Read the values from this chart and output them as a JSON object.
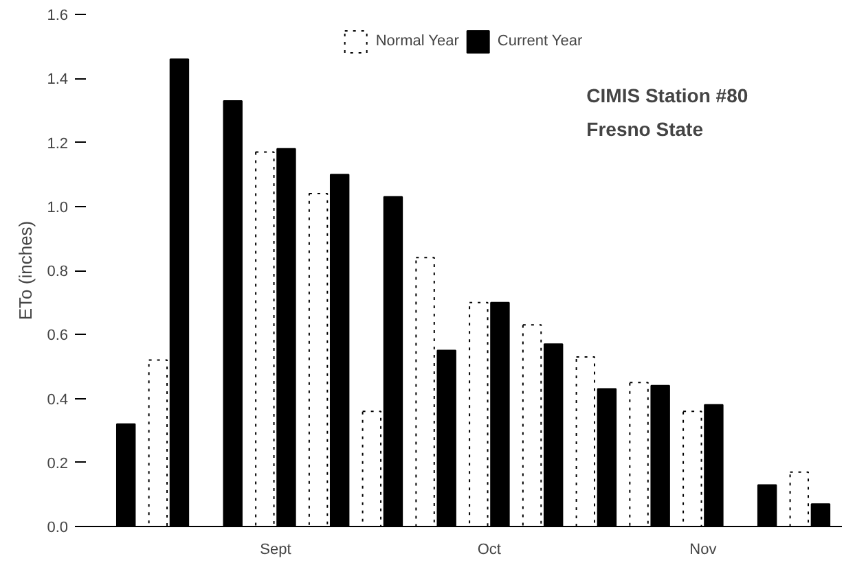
{
  "chart_data": {
    "type": "bar",
    "ylabel": "ETo (inches)",
    "categories": [
      null,
      null,
      null,
      "Sept",
      null,
      null,
      null,
      "Oct",
      null,
      null,
      null,
      "Nov",
      null,
      null
    ],
    "series": [
      {
        "name": "Normal Year",
        "color": "#ffffff",
        "values": [
          null,
          0.52,
          null,
          1.17,
          1.04,
          0.36,
          0.84,
          0.7,
          0.63,
          0.53,
          0.45,
          0.36,
          null,
          0.17
        ]
      },
      {
        "name": "Current Year",
        "color": "#000000",
        "values": [
          0.32,
          1.46,
          1.33,
          1.18,
          1.1,
          1.03,
          0.55,
          0.7,
          0.57,
          0.43,
          0.44,
          0.38,
          0.13,
          0.07
        ]
      }
    ],
    "ylim": [
      0,
      1.6
    ],
    "yticks": [
      {
        "value": 0,
        "label": "0.0"
      },
      {
        "value": 0.2,
        "label": "0.2"
      },
      {
        "value": 0.4,
        "label": "0.4"
      },
      {
        "value": 0.6,
        "label": "0.6"
      },
      {
        "value": 0.8,
        "label": "0.8"
      },
      {
        "value": 1,
        "label": "1.0"
      },
      {
        "value": 1.2,
        "label": "1.2"
      },
      {
        "value": 1.4,
        "label": "1.4"
      },
      {
        "value": 1.6,
        "label": "1.6"
      }
    ],
    "annotations": [
      "CIMIS Station #80",
      "Fresno State"
    ],
    "legend": "top",
    "grid": false
  }
}
